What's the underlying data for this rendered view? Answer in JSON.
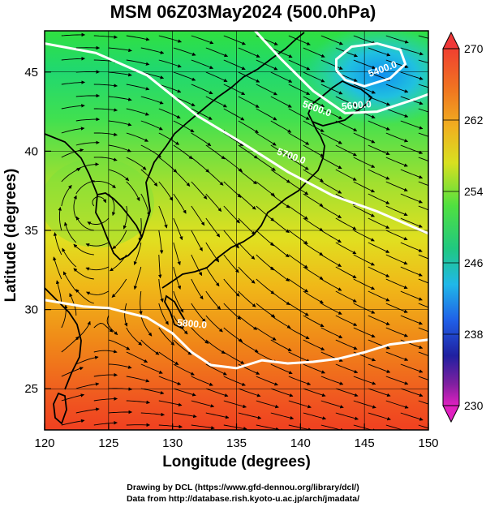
{
  "title": "MSM 06Z03May2024 (500.0hPa)",
  "axes": {
    "xlabel": "Longitude (degrees)",
    "ylabel": "Latitude  (degrees)",
    "x_ticks": [
      "120",
      "125",
      "130",
      "135",
      "140",
      "145",
      "150"
    ],
    "y_ticks": [
      "25",
      "30",
      "35",
      "40",
      "45"
    ]
  },
  "colorbar": {
    "ticks": [
      "270",
      "262",
      "254",
      "246",
      "238",
      "230"
    ],
    "colors": [
      "#e03070",
      "#f03040",
      "#f07020",
      "#f0b020",
      "#d8e020",
      "#70e040",
      "#20c860",
      "#30d8c8",
      "#28a0f0",
      "#2050e0",
      "#2020a0",
      "#802090",
      "#e020c0"
    ]
  },
  "contour_labels": [
    "5400.0",
    "5600.0",
    "5600.0",
    "5700.0",
    "5800.0"
  ],
  "credits": {
    "line1": "Drawing by DCL (https://www.gfd-dennou.org/library/dcl/)",
    "line2": "Data from http://database.rish.kyoto-u.ac.jp/arch/jmadata/"
  },
  "chart_data": {
    "type": "heatmap",
    "variable": "temperature with height contours and streamlines",
    "xlim": [
      120,
      150
    ],
    "ylim": [
      22.4,
      47.6
    ],
    "colorbar_range": [
      230,
      270
    ],
    "contours": [
      {
        "label": "5400.0",
        "points": [
          [
            142.8,
            45.1
          ],
          [
            143.5,
            44.5
          ],
          [
            145,
            44.1
          ],
          [
            147,
            44.6
          ],
          [
            148.2,
            45.5
          ],
          [
            147.8,
            46.4
          ],
          [
            146,
            46.8
          ],
          [
            144,
            46.6
          ],
          [
            142.8,
            45.8
          ],
          [
            142.8,
            45.1
          ]
        ]
      },
      {
        "label": "5600.0",
        "points": [
          [
            136,
            48
          ],
          [
            138.5,
            45.8
          ],
          [
            141,
            43.8
          ],
          [
            143.5,
            42.4
          ],
          [
            146,
            42.5
          ],
          [
            149,
            43.3
          ],
          [
            150,
            43.6
          ]
        ]
      },
      {
        "label": "5700.0",
        "points": [
          [
            120,
            46.8
          ],
          [
            124,
            46.2
          ],
          [
            128,
            44.8
          ],
          [
            132,
            42.2
          ],
          [
            135.5,
            40.5
          ],
          [
            139,
            38.7
          ],
          [
            142.5,
            37.2
          ],
          [
            146,
            36.2
          ],
          [
            150,
            34.8
          ]
        ]
      },
      {
        "label": "5800.0",
        "points": [
          [
            120,
            30.6
          ],
          [
            123,
            30.2
          ],
          [
            125,
            30.1
          ],
          [
            128,
            29.5
          ],
          [
            130,
            28.5
          ],
          [
            131.5,
            27.3
          ],
          [
            133,
            26.5
          ],
          [
            135,
            26.3
          ],
          [
            137,
            26.8
          ],
          [
            139,
            26.6
          ],
          [
            141,
            26.7
          ],
          [
            143,
            26.9
          ],
          [
            145,
            27.3
          ],
          [
            147,
            27.8
          ],
          [
            150,
            28.1
          ]
        ]
      }
    ]
  }
}
